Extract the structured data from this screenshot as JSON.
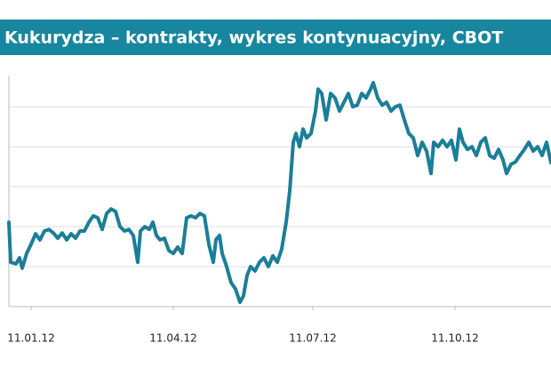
{
  "chart_data": {
    "type": "line",
    "title": "Kukurydza – kontrakty, wykres kontynuacyjny, CBOT",
    "x": [
      0,
      2,
      8,
      12,
      15,
      20,
      25,
      30,
      35,
      40,
      45,
      50,
      55,
      60,
      65,
      70,
      75,
      80,
      85,
      90,
      95,
      100,
      105,
      110,
      115,
      120,
      125,
      130,
      135,
      140,
      145,
      148,
      153,
      158,
      162,
      166,
      170,
      175,
      180,
      185,
      190,
      195,
      200,
      205,
      210,
      215,
      220,
      225,
      230,
      233,
      237,
      240,
      245,
      250,
      255,
      260,
      264,
      268,
      272,
      277,
      282,
      287,
      292,
      297,
      302,
      307,
      312,
      316,
      320,
      323,
      327,
      331,
      335,
      340,
      345,
      348,
      352,
      357,
      362,
      367,
      372,
      377,
      382,
      387,
      392,
      397,
      402,
      407,
      410,
      415,
      420,
      425,
      430,
      435,
      440,
      445,
      450,
      455,
      460,
      465,
      470,
      475,
      478,
      483,
      488,
      493,
      498,
      503,
      507,
      511,
      516,
      521,
      526,
      531,
      536,
      541,
      546,
      551,
      556,
      560,
      565,
      570,
      575,
      580,
      585,
      590,
      595,
      600,
      605,
      610
    ],
    "values": [
      2.11,
      1.11,
      1.07,
      1.22,
      0.96,
      1.33,
      1.56,
      1.82,
      1.67,
      1.89,
      1.93,
      1.84,
      1.71,
      1.84,
      1.67,
      1.82,
      1.71,
      1.89,
      1.89,
      2.11,
      2.27,
      2.22,
      1.93,
      2.33,
      2.44,
      2.38,
      2.0,
      1.89,
      1.93,
      1.78,
      1.11,
      1.89,
      2.0,
      1.93,
      2.11,
      1.78,
      1.67,
      1.71,
      1.4,
      1.33,
      1.49,
      1.33,
      2.22,
      2.27,
      2.22,
      2.33,
      2.27,
      1.56,
      1.11,
      1.67,
      1.78,
      1.33,
      1.0,
      0.6,
      0.44,
      0.11,
      0.27,
      0.78,
      1.0,
      0.89,
      1.11,
      1.22,
      1.0,
      1.27,
      1.11,
      1.44,
      2.11,
      2.89,
      4.11,
      4.33,
      4.0,
      4.44,
      4.22,
      4.33,
      4.89,
      5.44,
      5.33,
      4.67,
      5.33,
      5.22,
      4.89,
      5.11,
      5.33,
      5.0,
      5.04,
      5.33,
      5.22,
      5.44,
      5.6,
      5.22,
      5.04,
      5.11,
      4.89,
      5.0,
      5.04,
      4.67,
      4.33,
      4.22,
      3.78,
      4.11,
      3.89,
      3.33,
      4.11,
      4.0,
      4.16,
      4.0,
      4.16,
      3.67,
      4.44,
      4.11,
      3.93,
      4.0,
      3.78,
      4.11,
      4.22,
      3.78,
      3.71,
      3.93,
      3.67,
      3.33,
      3.56,
      3.62,
      3.78,
      3.93,
      4.11,
      3.89,
      4.0,
      3.78,
      4.11,
      3.6
    ],
    "color": "#1b7e98",
    "xlim": [
      0,
      610
    ],
    "xticks": [
      {
        "value": 25,
        "label": "11.01.12"
      },
      {
        "value": 185,
        "label": "11.04.12"
      },
      {
        "value": 342,
        "label": "11.07.12"
      },
      {
        "value": 502,
        "label": "11.10.12"
      }
    ],
    "ylim": [
      0,
      5.78
    ],
    "yticks": [
      1,
      2,
      3,
      4,
      5
    ],
    "grid": true
  }
}
